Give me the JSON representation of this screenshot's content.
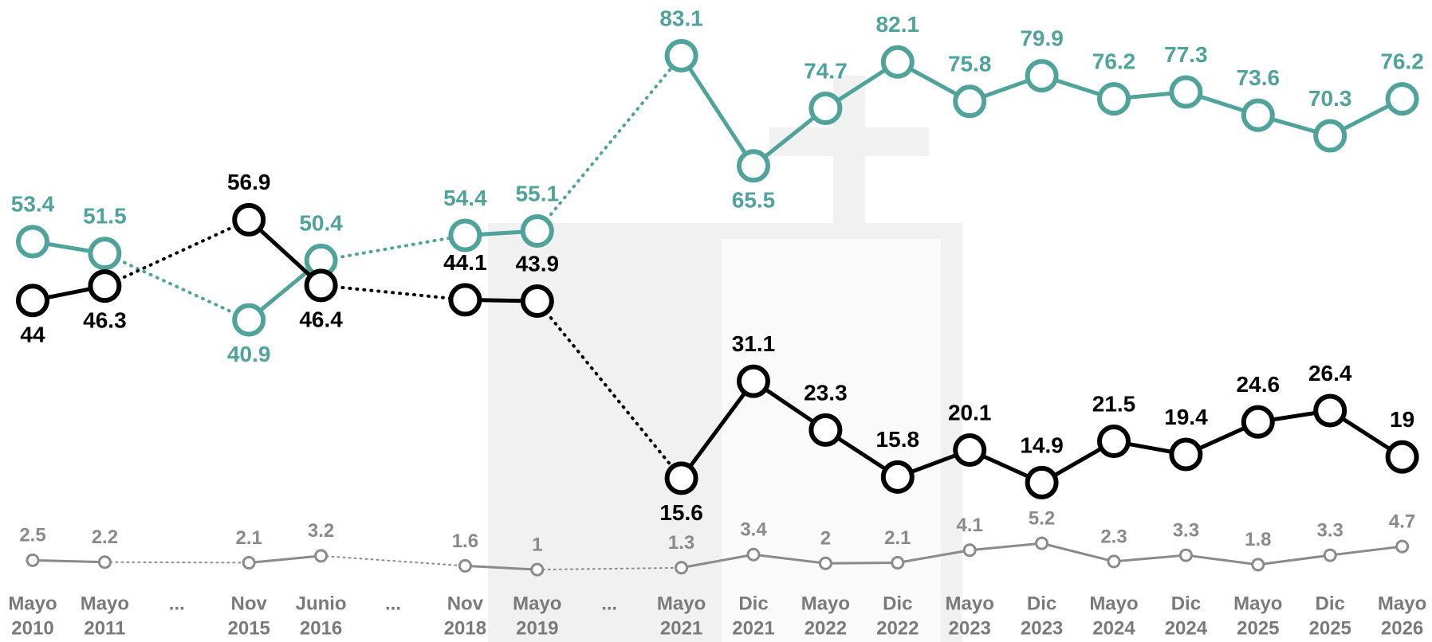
{
  "chart_data": {
    "type": "line",
    "categories": [
      [
        "Mayo",
        "2010"
      ],
      [
        "Mayo",
        "2011"
      ],
      [
        "..."
      ],
      [
        "Nov",
        "2015"
      ],
      [
        "Junio",
        "2016"
      ],
      [
        "..."
      ],
      [
        "Nov",
        "2018"
      ],
      [
        "Mayo",
        "2019"
      ],
      [
        "..."
      ],
      [
        "Mayo",
        "2021"
      ],
      [
        "Dic",
        "2021"
      ],
      [
        "Mayo",
        "2022"
      ],
      [
        "Dic",
        "2022"
      ],
      [
        "Mayo",
        "2023"
      ],
      [
        "Dic",
        "2023"
      ],
      [
        "Mayo",
        "2024"
      ],
      [
        "Dic",
        "2024"
      ],
      [
        "Mayo",
        "2025"
      ],
      [
        "Dic",
        "2025"
      ],
      [
        "Mayo",
        "2026"
      ]
    ],
    "series": [
      {
        "color": "#4fa39b",
        "values": [
          53.4,
          51.5,
          null,
          40.9,
          50.4,
          null,
          54.4,
          55.1,
          null,
          83.1,
          65.5,
          74.7,
          82.1,
          75.8,
          79.9,
          76.2,
          77.3,
          73.6,
          70.3,
          76.2
        ]
      },
      {
        "color": "#000000",
        "values": [
          44,
          46.3,
          null,
          56.9,
          46.4,
          null,
          44.1,
          43.9,
          null,
          15.6,
          31.1,
          23.3,
          15.8,
          20.1,
          14.9,
          21.5,
          19.4,
          24.6,
          26.4,
          19
        ]
      },
      {
        "color": "#8a8a8a",
        "values": [
          2.5,
          2.2,
          null,
          2.1,
          3.2,
          null,
          1.6,
          1,
          null,
          1.3,
          3.4,
          2,
          2.1,
          4.1,
          5.2,
          2.3,
          3.3,
          1.8,
          3.3,
          4.7
        ]
      }
    ],
    "ylim": [
      0,
      92
    ]
  }
}
